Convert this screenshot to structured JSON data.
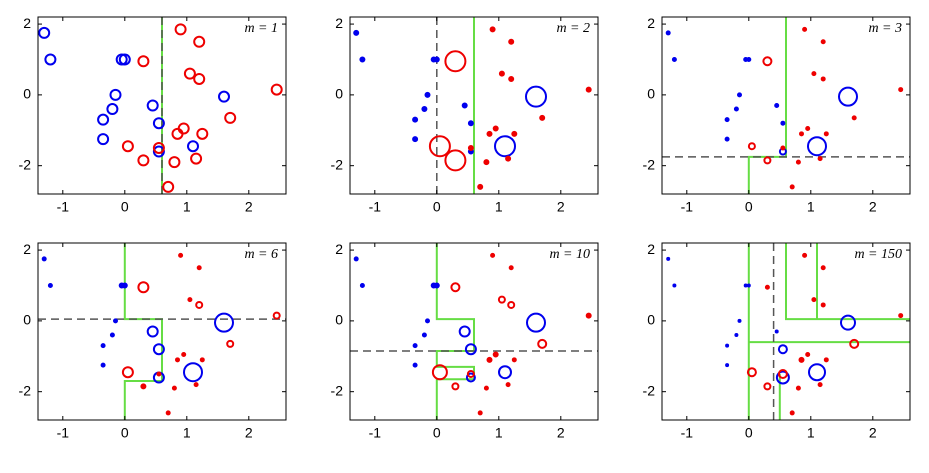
{
  "chart_data": [
    {
      "type": "scatter",
      "title": "m = 1",
      "xlim": [
        -1.4,
        2.6
      ],
      "ylim": [
        -2.8,
        2.2
      ],
      "xticks": [
        -1,
        0,
        1,
        2
      ],
      "yticks": [
        -2,
        0,
        2
      ],
      "series": [
        {
          "color": "#0000ee",
          "x": [
            -1.3,
            -1.2,
            -0.05,
            0.0,
            -0.15,
            -0.2,
            -0.35,
            -0.35,
            0.45,
            0.55,
            0.55,
            1.1,
            1.6
          ],
          "y": [
            1.75,
            1.0,
            1.0,
            1.0,
            0.0,
            -0.4,
            -0.7,
            -1.25,
            -0.3,
            -0.8,
            -1.6,
            -1.45,
            -0.05
          ],
          "sizes": [
            5,
            5,
            5,
            5,
            5,
            5,
            5,
            5,
            5,
            5,
            5,
            5,
            5
          ]
        },
        {
          "color": "#ee0000",
          "x": [
            0.3,
            0.9,
            1.2,
            1.05,
            1.2,
            1.7,
            2.45,
            0.05,
            0.3,
            0.55,
            0.85,
            0.95,
            1.25,
            0.8,
            1.15,
            0.7
          ],
          "y": [
            0.95,
            1.85,
            1.5,
            0.6,
            0.45,
            -0.65,
            0.15,
            -1.45,
            -1.85,
            -1.5,
            -1.1,
            -0.95,
            -1.1,
            -1.9,
            -1.8,
            -2.6
          ],
          "sizes": [
            5,
            5,
            5,
            5,
            5,
            5,
            5,
            5,
            5,
            5,
            5,
            5,
            5,
            5,
            5,
            5
          ]
        }
      ],
      "lines": [
        {
          "color": "#66dd44",
          "dash": false,
          "x": [
            0.6,
            0.6
          ],
          "y": [
            2.2,
            -2.8
          ]
        },
        {
          "color": "#555555",
          "dash": true,
          "x": [
            0.6,
            0.6
          ],
          "y": [
            2.2,
            -2.8
          ]
        }
      ]
    },
    {
      "type": "scatter",
      "title": "m = 2",
      "xlim": [
        -1.4,
        2.6
      ],
      "ylim": [
        -2.8,
        2.2
      ],
      "xticks": [
        -1,
        0,
        1,
        2
      ],
      "yticks": [
        -2,
        0,
        2
      ],
      "series": [
        {
          "color": "#0000ee",
          "x": [
            -1.3,
            -1.2,
            -0.05,
            0.0,
            -0.15,
            -0.2,
            -0.35,
            -0.35,
            0.45,
            0.55,
            0.55,
            1.1,
            1.6
          ],
          "y": [
            1.75,
            1.0,
            1.0,
            1.0,
            0.0,
            -0.4,
            -0.7,
            -1.25,
            -0.3,
            -0.8,
            -1.6,
            -1.45,
            -0.05
          ],
          "sizes": [
            2,
            2,
            2,
            2,
            2,
            2,
            2,
            2,
            2,
            2,
            2,
            10,
            10
          ]
        },
        {
          "color": "#ee0000",
          "x": [
            0.3,
            0.9,
            1.2,
            1.05,
            1.2,
            1.7,
            2.45,
            0.05,
            0.3,
            0.55,
            0.85,
            0.95,
            1.25,
            0.8,
            1.15,
            0.7
          ],
          "y": [
            0.95,
            1.85,
            1.5,
            0.6,
            0.45,
            -0.65,
            0.15,
            -1.45,
            -1.85,
            -1.5,
            -1.1,
            -0.95,
            -1.1,
            -1.9,
            -1.8,
            -2.6
          ],
          "sizes": [
            10,
            2,
            2,
            2,
            2,
            2,
            2,
            10,
            10,
            2,
            2,
            2,
            2,
            2,
            2,
            2
          ]
        }
      ],
      "lines": [
        {
          "color": "#66dd44",
          "dash": false,
          "x": [
            0.6,
            0.6
          ],
          "y": [
            2.2,
            -2.8
          ]
        },
        {
          "color": "#555555",
          "dash": true,
          "x": [
            0,
            0
          ],
          "y": [
            2.2,
            -2.8
          ]
        }
      ]
    },
    {
      "type": "scatter",
      "title": "m = 3",
      "xlim": [
        -1.4,
        2.6
      ],
      "ylim": [
        -2.8,
        2.2
      ],
      "xticks": [
        -1,
        0,
        1,
        2
      ],
      "yticks": [
        -2,
        0,
        2
      ],
      "series": [
        {
          "color": "#0000ee",
          "x": [
            -1.3,
            -1.2,
            -0.05,
            0.0,
            -0.15,
            -0.2,
            -0.35,
            -0.35,
            0.45,
            0.55,
            0.55,
            1.1,
            1.6
          ],
          "y": [
            1.75,
            1.0,
            1.0,
            1.0,
            0.0,
            -0.4,
            -0.7,
            -1.25,
            -0.3,
            -0.8,
            -1.6,
            -1.45,
            -0.05
          ],
          "sizes": [
            1.5,
            1.5,
            1.5,
            1.5,
            1.5,
            1.5,
            1.5,
            1.5,
            1.5,
            1.5,
            3,
            9,
            9
          ]
        },
        {
          "color": "#ee0000",
          "x": [
            0.3,
            0.9,
            1.2,
            1.05,
            1.2,
            1.7,
            2.45,
            0.05,
            0.3,
            0.55,
            0.85,
            0.95,
            1.25,
            0.8,
            1.15,
            0.7
          ],
          "y": [
            0.95,
            1.85,
            1.5,
            0.6,
            0.45,
            -0.65,
            0.15,
            -1.45,
            -1.85,
            -1.5,
            -1.1,
            -0.95,
            -1.1,
            -1.9,
            -1.8,
            -2.6
          ],
          "sizes": [
            4,
            1.5,
            1.5,
            1.5,
            1.5,
            1.5,
            1.5,
            3,
            3,
            1.5,
            1.5,
            1.5,
            1.5,
            1.5,
            1.5,
            1.5
          ]
        }
      ],
      "lines": [
        {
          "color": "#66dd44",
          "dash": false,
          "x": [
            0.6,
            0.6,
            0,
            0
          ],
          "y": [
            2.2,
            -1.75,
            -1.75,
            -2.8
          ]
        },
        {
          "color": "#555555",
          "dash": true,
          "x": [
            -1.4,
            2.6
          ],
          "y": [
            -1.75,
            -1.75
          ]
        }
      ]
    },
    {
      "type": "scatter",
      "title": "m = 6",
      "xlim": [
        -1.4,
        2.6
      ],
      "ylim": [
        -2.8,
        2.2
      ],
      "xticks": [
        -1,
        0,
        1,
        2
      ],
      "yticks": [
        -2,
        0,
        2
      ],
      "series": [
        {
          "color": "#0000ee",
          "x": [
            -1.3,
            -1.2,
            -0.05,
            0.0,
            -0.15,
            -0.2,
            -0.35,
            -0.35,
            0.45,
            0.55,
            0.55,
            1.1,
            1.6
          ],
          "y": [
            1.75,
            1.0,
            1.0,
            1.0,
            0.0,
            -0.4,
            -0.7,
            -1.25,
            -0.3,
            -0.8,
            -1.6,
            -1.45,
            -0.05
          ],
          "sizes": [
            1.5,
            1.5,
            2,
            2,
            1.5,
            1.5,
            1.5,
            1.5,
            5,
            5,
            5,
            9,
            9
          ]
        },
        {
          "color": "#ee0000",
          "x": [
            0.3,
            0.9,
            1.2,
            1.05,
            1.2,
            1.7,
            2.45,
            0.05,
            0.3,
            0.55,
            0.85,
            0.95,
            1.25,
            0.8,
            1.15,
            0.7
          ],
          "y": [
            0.95,
            1.85,
            1.5,
            0.6,
            0.45,
            -0.65,
            0.15,
            -1.45,
            -1.85,
            -1.5,
            -1.1,
            -0.95,
            -1.1,
            -1.9,
            -1.8,
            -2.6
          ],
          "sizes": [
            5,
            1.5,
            1.5,
            1.5,
            3,
            3,
            3,
            5,
            2,
            1.5,
            1.5,
            1.5,
            1.5,
            1.5,
            1.5,
            1.5
          ]
        }
      ],
      "lines": [
        {
          "color": "#66dd44",
          "dash": false,
          "x": [
            0,
            0,
            0.6,
            0.6,
            0,
            0
          ],
          "y": [
            2.2,
            0.05,
            0.05,
            -1.7,
            -1.7,
            -2.8
          ]
        },
        {
          "color": "#555555",
          "dash": true,
          "x": [
            -1.4,
            2.6
          ],
          "y": [
            0.05,
            0.05
          ]
        }
      ]
    },
    {
      "type": "scatter",
      "title": "m = 10",
      "xlim": [
        -1.4,
        2.6
      ],
      "ylim": [
        -2.8,
        2.2
      ],
      "xticks": [
        -1,
        0,
        1,
        2
      ],
      "yticks": [
        -2,
        0,
        2
      ],
      "series": [
        {
          "color": "#0000ee",
          "x": [
            -1.3,
            -1.2,
            -0.05,
            0.0,
            -0.15,
            -0.2,
            -0.35,
            -0.35,
            0.45,
            0.55,
            0.55,
            1.1,
            1.6
          ],
          "y": [
            1.75,
            1.0,
            1.0,
            1.0,
            0.0,
            -0.4,
            -0.7,
            -1.25,
            -0.3,
            -0.8,
            -1.6,
            -1.45,
            -0.05
          ],
          "sizes": [
            1.5,
            1.5,
            2,
            2,
            1.5,
            1.5,
            1.5,
            1.5,
            5,
            5,
            4,
            6,
            9
          ]
        },
        {
          "color": "#ee0000",
          "x": [
            0.3,
            0.9,
            1.2,
            1.05,
            1.2,
            1.7,
            2.45,
            0.05,
            0.3,
            0.55,
            0.85,
            0.95,
            1.25,
            0.8,
            1.15,
            0.7
          ],
          "y": [
            0.95,
            1.85,
            1.5,
            0.6,
            0.45,
            -0.65,
            0.15,
            -1.45,
            -1.85,
            -1.5,
            -1.1,
            -0.95,
            -1.1,
            -1.9,
            -1.8,
            -2.6
          ],
          "sizes": [
            4,
            1.5,
            1.5,
            3,
            3,
            4,
            2,
            7,
            3,
            3,
            2,
            2,
            1.5,
            1.5,
            1.5,
            1.5
          ]
        }
      ],
      "lines": [
        {
          "color": "#66dd44",
          "dash": false,
          "x": [
            0,
            0,
            0.6,
            0.6,
            0,
            0,
            0.6,
            0.6,
            0,
            0
          ],
          "y": [
            2.2,
            0.05,
            0.05,
            -0.85,
            -0.85,
            -1.3,
            -1.3,
            -1.65,
            -1.65,
            -2.8
          ]
        },
        {
          "color": "#555555",
          "dash": true,
          "x": [
            -1.4,
            2.6
          ],
          "y": [
            -0.85,
            -0.85
          ]
        }
      ]
    },
    {
      "type": "scatter",
      "title": "m = 150",
      "xlim": [
        -1.4,
        2.6
      ],
      "ylim": [
        -2.8,
        2.2
      ],
      "xticks": [
        -1,
        0,
        1,
        2
      ],
      "yticks": [
        -2,
        0,
        2
      ],
      "series": [
        {
          "color": "#0000ee",
          "x": [
            -1.3,
            -1.2,
            -0.05,
            0.0,
            -0.15,
            -0.2,
            -0.35,
            -0.35,
            0.45,
            0.55,
            0.55,
            1.1,
            1.6
          ],
          "y": [
            1.75,
            1.0,
            1.0,
            1.0,
            0.0,
            -0.4,
            -0.7,
            -1.25,
            -0.3,
            -0.8,
            -1.6,
            -1.45,
            -0.05
          ],
          "sizes": [
            1,
            1,
            1,
            1,
            1,
            1,
            1,
            1,
            1,
            4,
            6,
            8,
            7
          ]
        },
        {
          "color": "#ee0000",
          "x": [
            0.3,
            0.9,
            1.2,
            1.05,
            1.2,
            1.7,
            2.45,
            0.05,
            0.3,
            0.55,
            0.85,
            0.95,
            1.25,
            0.8,
            1.15,
            0.7
          ],
          "y": [
            0.95,
            1.85,
            1.5,
            0.6,
            0.45,
            -0.65,
            0.15,
            -1.45,
            -1.85,
            -1.5,
            -1.1,
            -0.95,
            -1.1,
            -1.9,
            -1.8,
            -2.6
          ],
          "sizes": [
            1.5,
            1.5,
            1.5,
            1.5,
            1.5,
            4,
            1.5,
            4,
            3,
            4,
            2,
            1.5,
            1.5,
            1.5,
            1.5,
            1.5
          ]
        }
      ],
      "lines": [
        {
          "color": "#66dd44",
          "dash": false,
          "x": [
            0,
            0,
            null,
            0.6,
            0.6,
            2.6,
            null,
            1.1,
            1.1,
            null,
            0,
            1.1,
            1.1,
            2.6,
            null,
            0.5,
            0.5
          ],
          "y": [
            2.2,
            -2.8,
            null,
            2.2,
            0.05,
            0.05,
            null,
            2.2,
            0.05,
            null,
            -0.6,
            -0.6,
            -0.6,
            -0.6,
            null,
            -1.5,
            -2.8
          ]
        },
        {
          "color": "#555555",
          "dash": true,
          "x": [
            0.4,
            0.4
          ],
          "y": [
            2.2,
            -2.8
          ]
        }
      ]
    }
  ]
}
